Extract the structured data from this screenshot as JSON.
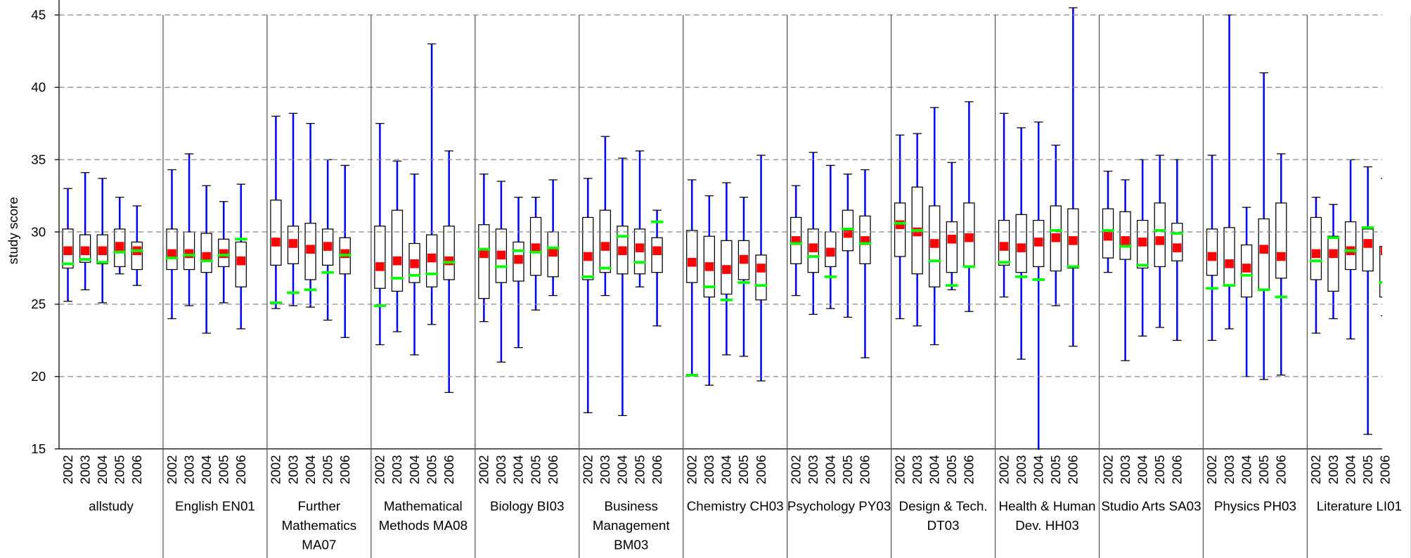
{
  "chart_data": {
    "type": "box",
    "ylabel": "study score",
    "ylim": [
      15,
      45
    ],
    "yticks": [
      15,
      20,
      25,
      30,
      35,
      40,
      45
    ],
    "grid": true,
    "years": [
      "2002",
      "2003",
      "2004",
      "2005",
      "2006"
    ],
    "whisker_color": "#0000ff",
    "mean_color": "#ff0000",
    "marker_color": "#00ff00",
    "groups": [
      {
        "name": "allstudy",
        "max": [
          33,
          34.1,
          33.7,
          32.4,
          31.8
        ],
        "q3": [
          30.2,
          29.8,
          29.8,
          30.2,
          29.3
        ],
        "q1": [
          27.5,
          27.9,
          27.8,
          27.6,
          27.4
        ],
        "min": [
          25.2,
          26,
          25.1,
          27.1,
          26.3
        ],
        "mean": [
          28.7,
          28.7,
          28.7,
          29,
          28.7
        ],
        "marker": [
          27.8,
          28.1,
          27.9,
          28.6,
          28.7
        ]
      },
      {
        "name": "English EN01",
        "max": [
          34.3,
          35.4,
          33.2,
          32.1,
          33.3
        ],
        "q3": [
          30.2,
          30,
          29.9,
          29.5,
          29.3
        ],
        "q1": [
          27.4,
          27.4,
          27.2,
          27.6,
          26.2
        ],
        "min": [
          24,
          24.9,
          23,
          25.1,
          23.3
        ],
        "mean": [
          28.5,
          28.5,
          28.3,
          28.5,
          28
        ],
        "marker": [
          28.2,
          28.4,
          28,
          28.4,
          29.5
        ]
      },
      {
        "name": "Further Mathematics MA07",
        "max": [
          38,
          38.2,
          37.5,
          35,
          34.6
        ],
        "q3": [
          32.2,
          30.4,
          30.6,
          30.2,
          29.6
        ],
        "q1": [
          27.7,
          27.8,
          26.7,
          27.7,
          27.1
        ],
        "min": [
          24.7,
          24.9,
          24.8,
          23.9,
          22.7
        ],
        "mean": [
          29.3,
          29.2,
          28.8,
          29,
          28.5
        ],
        "marker": [
          25.1,
          25.8,
          26,
          27.2,
          28.4
        ]
      },
      {
        "name": "Mathematical Methods MA08",
        "max": [
          37.5,
          34.9,
          34,
          43,
          35.6
        ],
        "q3": [
          30.4,
          31.5,
          29.2,
          29.8,
          30.4
        ],
        "q1": [
          26.1,
          25.9,
          26.5,
          26.2,
          26.7
        ],
        "min": [
          22.2,
          23.1,
          21.5,
          23.6,
          18.9
        ],
        "mean": [
          27.6,
          28,
          27.8,
          28.2,
          28
        ],
        "marker": [
          24.9,
          26.8,
          27,
          27.1,
          27.9
        ]
      },
      {
        "name": "Biology BI03",
        "max": [
          34,
          33.5,
          32.4,
          32.4,
          33.6
        ],
        "q3": [
          30.5,
          30.2,
          29.3,
          31,
          30
        ],
        "q1": [
          25.4,
          26.5,
          26.6,
          27,
          26.9
        ],
        "min": [
          23.8,
          21,
          22,
          24.6,
          25.6
        ],
        "mean": [
          28.5,
          28.4,
          28.1,
          28.9,
          28.6
        ],
        "marker": [
          28.8,
          27.6,
          28.7,
          28.6,
          28.9
        ]
      },
      {
        "name": "Business Management BM03",
        "max": [
          33.7,
          36.6,
          35.1,
          35.6,
          31.5
        ],
        "q3": [
          31,
          31.5,
          30.4,
          30.2,
          29.6
        ],
        "q1": [
          26.7,
          27.2,
          27.1,
          27.1,
          27.2
        ],
        "min": [
          17.5,
          25.6,
          17.3,
          26.2,
          23.5
        ],
        "mean": [
          28.3,
          29,
          28.7,
          28.9,
          28.7
        ],
        "marker": [
          26.9,
          27.5,
          29.7,
          27.9,
          30.7
        ]
      },
      {
        "name": "Chemistry CH03",
        "max": [
          33.6,
          32.5,
          33.4,
          32.4,
          35.3
        ],
        "q3": [
          30.1,
          29.7,
          29.4,
          29.4,
          28.4
        ],
        "q1": [
          26.5,
          25.5,
          25.7,
          26.7,
          25.3
        ],
        "min": [
          20.1,
          19.4,
          21.5,
          21.4,
          19.7
        ],
        "mean": [
          27.9,
          27.6,
          27.4,
          28.1,
          27.5
        ],
        "marker": [
          20.1,
          26.2,
          25.3,
          26.5,
          26.3
        ]
      },
      {
        "name": "Psychology PY03",
        "max": [
          33.2,
          35.5,
          34.6,
          34,
          34.3
        ],
        "q3": [
          31,
          30.2,
          30,
          31.5,
          31.1
        ],
        "q1": [
          27.8,
          27.2,
          27.6,
          28.7,
          27.8
        ],
        "min": [
          25.6,
          24.3,
          24.7,
          24.1,
          21.3
        ],
        "mean": [
          29.4,
          28.9,
          28.6,
          29.9,
          29.4
        ],
        "marker": [
          29.2,
          28.3,
          26.9,
          30.2,
          29.2
        ]
      },
      {
        "name": "Design & Tech. DT03",
        "max": [
          36.7,
          36.8,
          38.6,
          34.8,
          39
        ],
        "q3": [
          32,
          33.1,
          31.8,
          30.7,
          32
        ],
        "q1": [
          28.3,
          27.1,
          26.2,
          27.2,
          27.6
        ],
        "min": [
          24,
          23.5,
          22.2,
          26,
          24.5
        ],
        "mean": [
          30.5,
          30,
          29.2,
          29.5,
          29.6
        ],
        "marker": [
          30.6,
          30.1,
          28,
          26.3,
          27.6
        ]
      },
      {
        "name": "Health & Human Dev. HH03",
        "max": [
          38.2,
          37.2,
          37.6,
          36,
          45.5
        ],
        "q3": [
          30.8,
          31.2,
          30.8,
          31.8,
          31.6
        ],
        "q1": [
          27.7,
          27.2,
          27.6,
          27.3,
          27.5
        ],
        "min": [
          25.5,
          21.2,
          14.7,
          24.9,
          22.1
        ],
        "mean": [
          29,
          28.9,
          29.3,
          29.6,
          29.4
        ],
        "marker": [
          27.9,
          26.9,
          26.7,
          30.1,
          27.6
        ]
      },
      {
        "name": "Studio Arts SA03",
        "max": [
          34.2,
          33.6,
          35,
          35.3,
          35
        ],
        "q3": [
          31.6,
          31.4,
          30.8,
          32,
          30.6
        ],
        "q1": [
          28.2,
          28.1,
          27.5,
          27.6,
          28
        ],
        "min": [
          27.2,
          21.1,
          22.8,
          23.4,
          22.5
        ],
        "mean": [
          29.7,
          29.4,
          29.3,
          29.4,
          28.9
        ],
        "marker": [
          30.1,
          29,
          27.7,
          30.1,
          29.9
        ]
      },
      {
        "name": "Physics PH03",
        "max": [
          35.3,
          45,
          31.7,
          41,
          35.4
        ],
        "q3": [
          30.2,
          30.3,
          29.1,
          30.9,
          32
        ],
        "q1": [
          27,
          26.3,
          25.5,
          26,
          26.8
        ],
        "min": [
          22.5,
          23.3,
          20,
          19.8,
          20.1
        ],
        "mean": [
          28.3,
          27.8,
          27.5,
          28.8,
          28.3
        ],
        "marker": [
          26.1,
          26.3,
          27,
          26,
          25.5
        ]
      },
      {
        "name": "Literature LI01",
        "max": [
          32.4,
          31.9,
          35,
          34.5,
          33.7
        ],
        "q3": [
          31,
          29.7,
          30.7,
          30.2,
          29
        ],
        "q1": [
          26.7,
          25.9,
          27.4,
          27.3,
          25.5
        ],
        "min": [
          23,
          24,
          22.6,
          16,
          24.2
        ],
        "mean": [
          28.5,
          28.5,
          28.7,
          29.2,
          28.7
        ],
        "marker": [
          28,
          29.6,
          28.7,
          30.3,
          26.5
        ]
      }
    ]
  }
}
